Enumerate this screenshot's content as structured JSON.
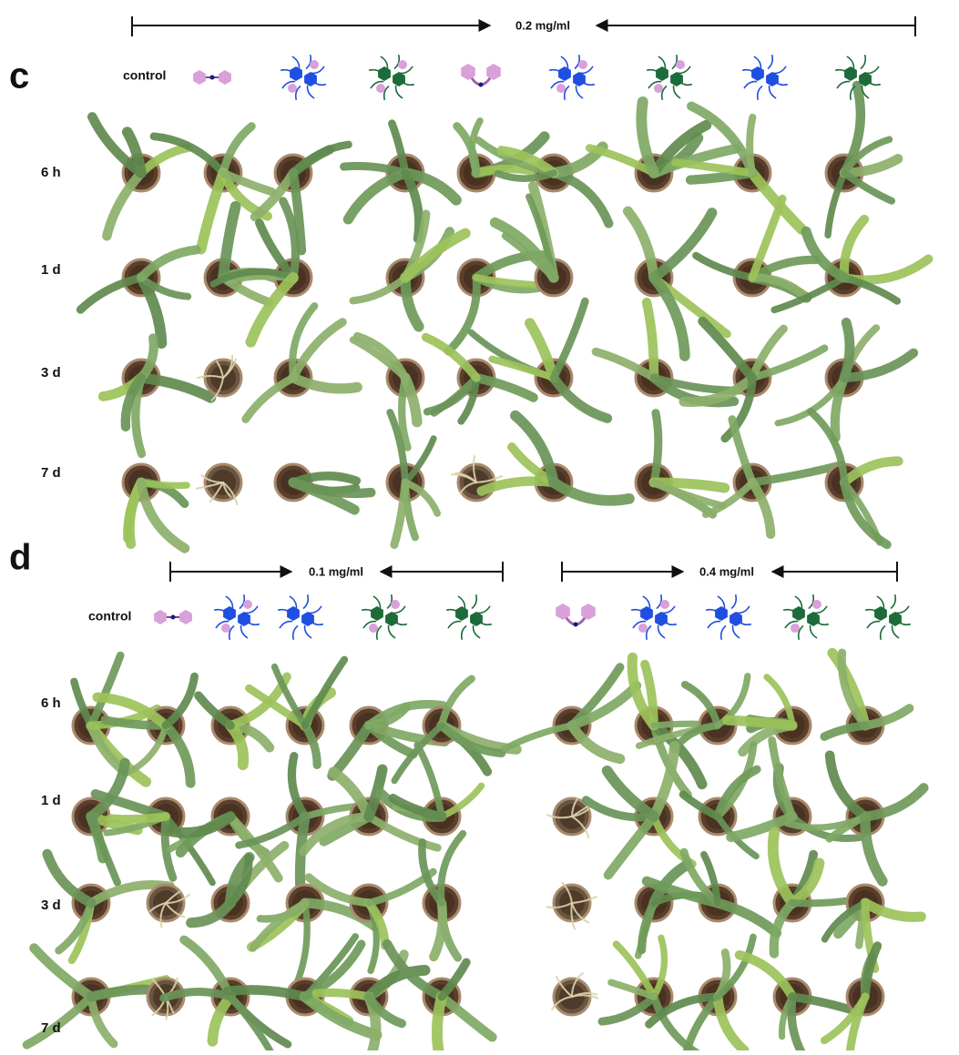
{
  "panels": [
    {
      "label": "c",
      "concentration": "0.2 mg/ml",
      "control": "control",
      "rows": [
        "6 h",
        "1 d",
        "3 d",
        "7 d"
      ]
    },
    {
      "label": "d",
      "concentrations": [
        "0.1 mg/ml",
        "0.4 mg/ml"
      ],
      "control": "control",
      "rows": [
        "6 h",
        "1 d",
        "3 d",
        "7 d"
      ]
    }
  ]
}
